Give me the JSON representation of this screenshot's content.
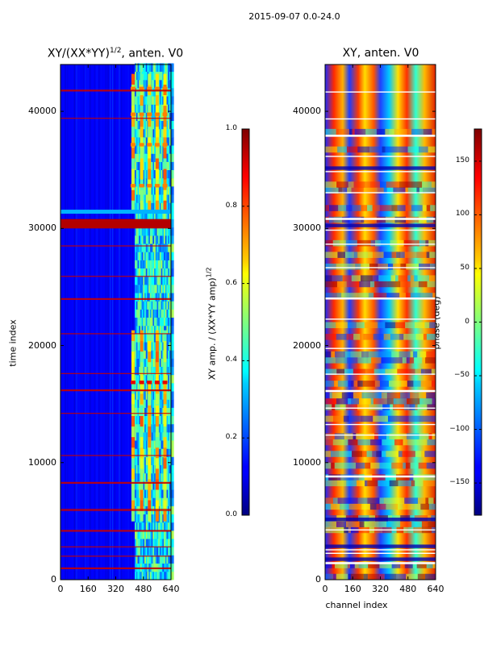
{
  "chart_data": [
    {
      "type": "heatmap",
      "title": "XY/(XX*YY)^{1/2}, anten. V0",
      "title_main": "XY/(XX*YY)",
      "title_sup": "1/2",
      "title_tail": ", anten. V0",
      "ylabel": "time index",
      "xlabel": "",
      "xlim": [
        0,
        640
      ],
      "ylim": [
        0,
        44000
      ],
      "xticks": [
        "0",
        "160",
        "320",
        "480",
        "640"
      ],
      "yticks": [
        "0",
        "10000",
        "20000",
        "30000",
        "40000"
      ],
      "colormap": "jet",
      "colorbar": {
        "label": "XY amp. / (XX*YY amp)^{1/2}",
        "label_main": "XY amp. / (XX*YY amp)",
        "label_sup": "1/2",
        "range": [
          0.0,
          1.0
        ],
        "ticks": [
          "0.0",
          "0.2",
          "0.4",
          "0.6",
          "0.8",
          "1.0"
        ]
      },
      "features": {
        "high_amp_rows": [
          1000,
          2000,
          2800,
          4200,
          5900,
          6000,
          8300,
          10600,
          14200,
          16200,
          17600,
          21000,
          24000,
          25900,
          28500,
          30200,
          30500,
          39400,
          41800
        ],
        "bright_channels": [
          420,
          470,
          515,
          560,
          605
        ],
        "peak_row_band": [
          16700,
          17000
        ]
      }
    },
    {
      "type": "heatmap",
      "title": "XY, anten. V0",
      "ylabel": "",
      "xlabel": "channel index",
      "xlim": [
        0,
        640
      ],
      "ylim": [
        0,
        44000
      ],
      "xticks": [
        "0",
        "160",
        "320",
        "480",
        "640"
      ],
      "yticks": [
        "0",
        "10000",
        "20000",
        "30000",
        "40000"
      ],
      "colormap": "jet",
      "colorbar": {
        "label": "phase (deg)",
        "range": [
          -180,
          180
        ],
        "ticks": [
          "−150",
          "−100",
          "−50",
          "0",
          "50",
          "100",
          "150"
        ]
      },
      "features": {
        "white_gap_rows": [
          1500,
          2300,
          2600,
          4300,
          8900,
          12400,
          13300,
          14700,
          16200,
          17600,
          19800,
          22300,
          24100,
          26700,
          28700,
          29900,
          30900,
          33100,
          34900,
          36200,
          38000,
          39400,
          41700
        ]
      }
    }
  ],
  "suptitle": "2015-09-07 0.0-24.0"
}
